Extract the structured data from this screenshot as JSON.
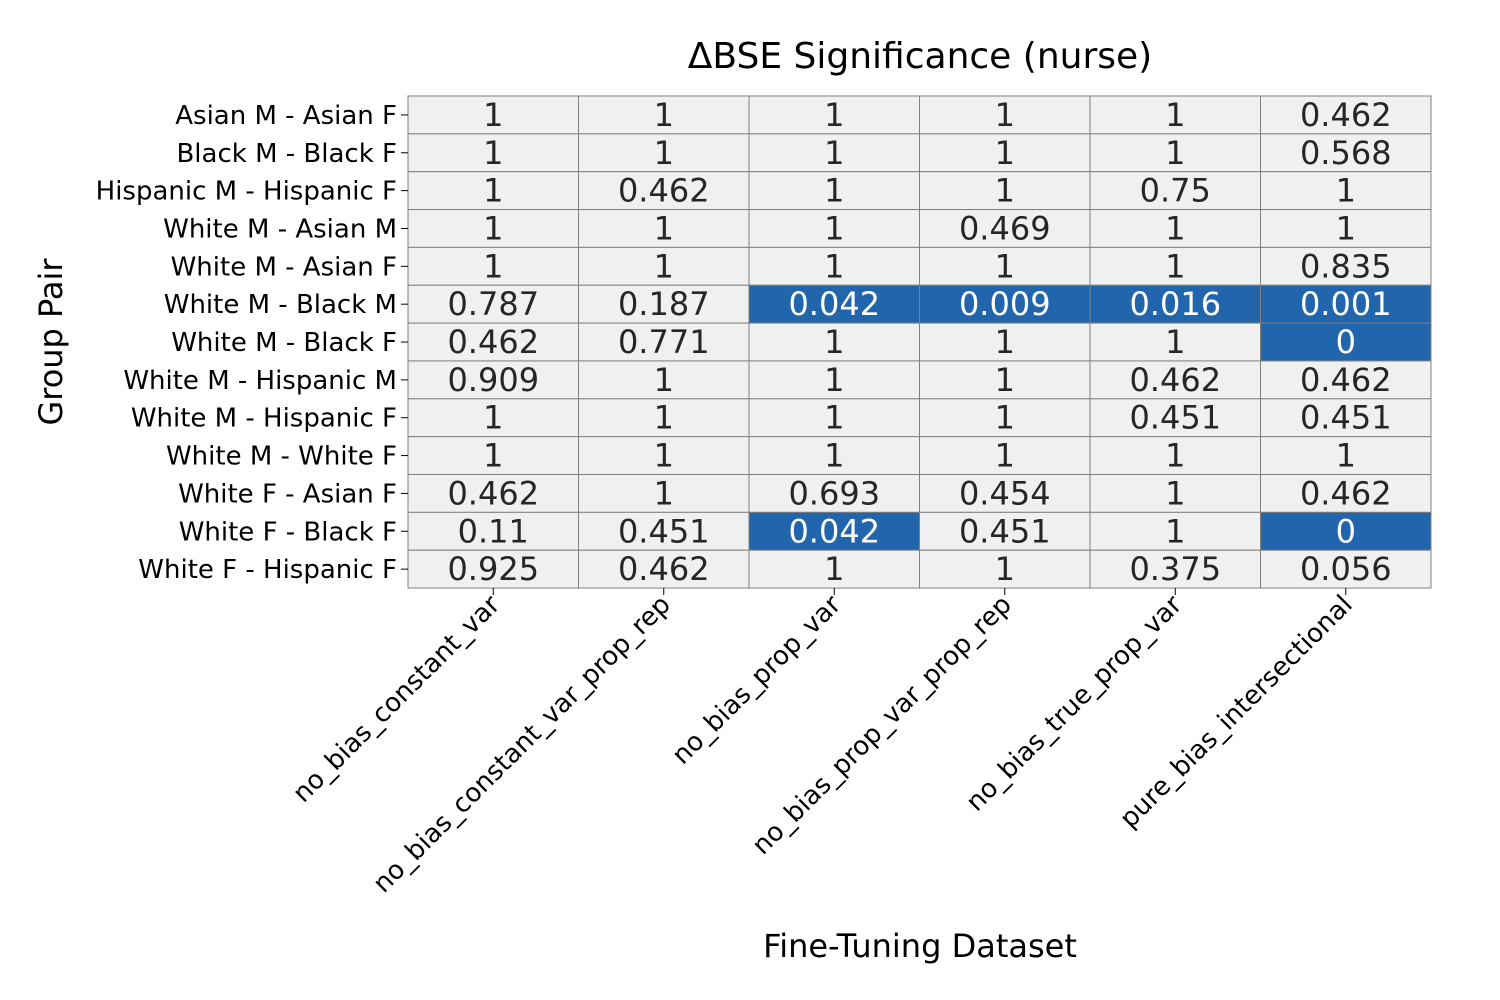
{
  "chart_data": {
    "type": "heatmap",
    "title": "ΔBSE Significance (nurse)",
    "xlabel": "Fine-Tuning Dataset",
    "ylabel": "Group Pair",
    "columns": [
      "no_bias_constant_var",
      "no_bias_constant_var_prop_rep",
      "no_bias_prop_var",
      "no_bias_prop_var_prop_rep",
      "no_bias_true_prop_var",
      "pure_bias_intersectional"
    ],
    "rows": [
      "Asian M - Asian F",
      "Black M - Black F",
      "Hispanic M - Hispanic F",
      "White M - Asian M",
      "White M - Asian F",
      "White M - Black M",
      "White M - Black F",
      "White M - Hispanic M",
      "White M - Hispanic F",
      "White M - White F",
      "White F - Asian F",
      "White F - Black F",
      "White F - Hispanic F"
    ],
    "values": [
      [
        "1",
        "1",
        "1",
        "1",
        "1",
        "0.462"
      ],
      [
        "1",
        "1",
        "1",
        "1",
        "1",
        "0.568"
      ],
      [
        "1",
        "0.462",
        "1",
        "1",
        "0.75",
        "1"
      ],
      [
        "1",
        "1",
        "1",
        "0.469",
        "1",
        "1"
      ],
      [
        "1",
        "1",
        "1",
        "1",
        "1",
        "0.835"
      ],
      [
        "0.787",
        "0.187",
        "0.042",
        "0.009",
        "0.016",
        "0.001"
      ],
      [
        "0.462",
        "0.771",
        "1",
        "1",
        "1",
        "0"
      ],
      [
        "0.909",
        "1",
        "1",
        "1",
        "0.462",
        "0.462"
      ],
      [
        "1",
        "1",
        "1",
        "1",
        "0.451",
        "0.451"
      ],
      [
        "1",
        "1",
        "1",
        "1",
        "1",
        "1"
      ],
      [
        "0.462",
        "1",
        "0.693",
        "0.454",
        "1",
        "0.462"
      ],
      [
        "0.11",
        "0.451",
        "0.042",
        "0.451",
        "1",
        "0"
      ],
      [
        "0.925",
        "0.462",
        "1",
        "1",
        "0.375",
        "0.056"
      ]
    ],
    "significance_threshold": 0.05,
    "colors": {
      "significant": "#2166ac",
      "not_significant": "#f0f0f0",
      "grid": "#808080",
      "text_dark": "#262626",
      "text_light": "#ffffff"
    }
  }
}
